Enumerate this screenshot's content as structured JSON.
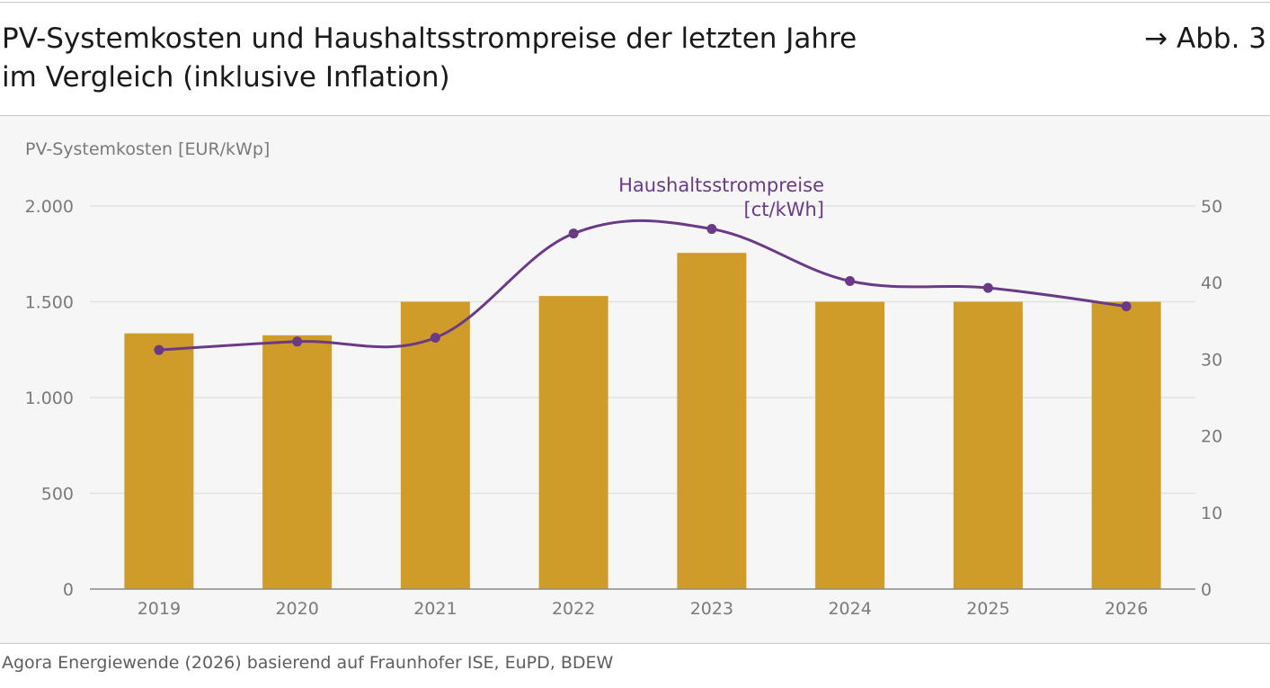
{
  "header": {
    "title_line1": "PV-Systemkosten und Haushaltsstrompreise der letzten Jahre",
    "title_line2": "im Vergleich (inklusive Inflation)",
    "figure_ref": "→ Abb. 3"
  },
  "footer": {
    "source": "Agora Energiewende (2026) basierend auf Fraunhofer ISE, EuPD, BDEW"
  },
  "colors": {
    "bar": "#cf9c29",
    "line": "#6b3a86",
    "grid": "#e2e2e2",
    "axis": "#8a8a8a",
    "tick_text": "#7a7a7a"
  },
  "chart_data": {
    "type": "bar",
    "categories": [
      "2019",
      "2020",
      "2021",
      "2022",
      "2023",
      "2024",
      "2025",
      "2026"
    ],
    "ylabel": "PV-Systemkosten [EUR/kWp]",
    "ylim": [
      0,
      2000
    ],
    "yticks": [
      0,
      500,
      1000,
      1500,
      2000
    ],
    "ytick_labels": [
      "0",
      "500",
      "1.000",
      "1.500",
      "2.000"
    ],
    "series": [
      {
        "type": "bar",
        "axis": "left",
        "values": [
          1335,
          1325,
          1500,
          1530,
          1755,
          1500,
          1500,
          1500
        ]
      },
      {
        "type": "line",
        "axis": "right",
        "name": "Haushaltsstrompreise",
        "name_line1": "Haushaltsstrompreise",
        "name_line2": "[ct/kWh]",
        "values": [
          31.2,
          32.3,
          32.8,
          46.4,
          47.0,
          40.2,
          39.3,
          36.9
        ]
      }
    ],
    "y2lim": [
      0,
      50
    ],
    "y2ticks": [
      0,
      10,
      20,
      30,
      40,
      50
    ],
    "y2tick_labels": [
      "0",
      "10",
      "20",
      "30",
      "40",
      "50"
    ],
    "grid": true
  }
}
